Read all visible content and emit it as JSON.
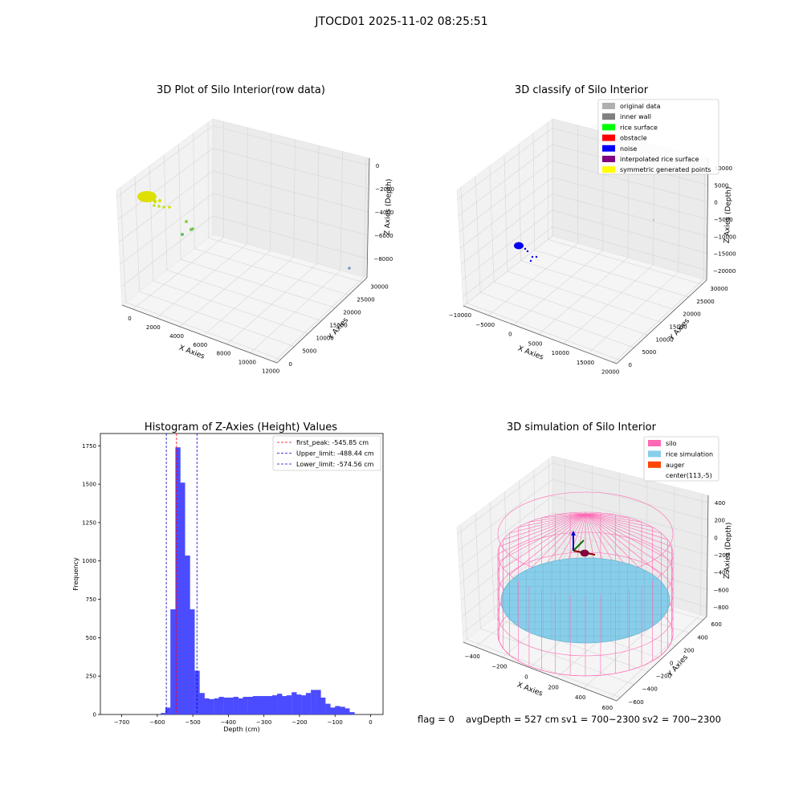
{
  "figure_title": "JTOCD01 2025-11-02 08:25:51",
  "footer": {
    "flag": "flag = 0",
    "avg_depth": "avgDepth = 527 cm",
    "sv1": "sv1 = 700~2300",
    "sv2": "sv2 = 700~2300"
  },
  "colors": {
    "original_data": "#b0b0b0",
    "inner_wall": "#808080",
    "rice_surface": "#00ff00",
    "obstacle": "#ff0000",
    "noise": "#0000ff",
    "interpolated_rice_surface": "#800080",
    "symmetric_generated_points": "#ffff00",
    "silo": "#ff69b4",
    "rice_simulation": "#87ceeb",
    "auger": "#ff4500",
    "hist_bar": "#4b4bff",
    "first_peak_line": "#ff0000",
    "limit_line": "#0000cc"
  },
  "chart_data": [
    {
      "type": "scatter",
      "projection": "3d",
      "title": "3D Plot of Silo Interior(row data)",
      "xlabel": "X Axies",
      "ylabel": "Y Axies",
      "zlabel": "Z Axies (Depth)",
      "xticks": [
        "0",
        "2000",
        "4000",
        "6000",
        "8000",
        "10000",
        "12000"
      ],
      "yticks": [
        "0",
        "5000",
        "10000",
        "15000",
        "20000",
        "25000",
        "30000"
      ],
      "zticks": [
        "0",
        "−2000",
        "−4000",
        "−6000",
        "−8000"
      ],
      "grid": true
    },
    {
      "type": "scatter",
      "projection": "3d",
      "title": "3D classify of Silo Interior",
      "xlabel": "X Axies",
      "ylabel": "Y Axies",
      "zlabel": "Z Axies (Depth)",
      "xticks": [
        "−10000",
        "−5000",
        "0",
        "5000",
        "10000",
        "15000",
        "20000"
      ],
      "yticks": [
        "0",
        "5000",
        "10000",
        "15000",
        "20000",
        "25000",
        "30000"
      ],
      "zticks": [
        "10000",
        "5000",
        "0",
        "−5000",
        "−10000",
        "−15000",
        "−20000"
      ],
      "legend": [
        "original data",
        "inner wall",
        "rice surface",
        "obstacle",
        "noise",
        "interpolated rice surface",
        "symmetric generated points"
      ],
      "legend_position": "top-right",
      "grid": true
    },
    {
      "type": "bar",
      "title": "Histogram of Z-Axies (Height) Values",
      "xlabel": "Depth (cm)",
      "ylabel": "Frequency",
      "xlim": [
        -760,
        35
      ],
      "ylim": [
        0,
        1830
      ],
      "xticks": [
        -700,
        -600,
        -500,
        -400,
        -300,
        -200,
        -100,
        0
      ],
      "xtick_labels": [
        "−700",
        "−600",
        "−500",
        "−400",
        "−300",
        "−200",
        "−100",
        "0"
      ],
      "yticks": [
        0,
        250,
        500,
        750,
        1000,
        1250,
        1500,
        1750
      ],
      "bin_width": 13.6,
      "bin_starts": [
        -590,
        -577,
        -563,
        -549,
        -536,
        -522,
        -509,
        -495,
        -481,
        -468,
        -454,
        -440,
        -427,
        -413,
        -400,
        -386,
        -372,
        -359,
        -345,
        -331,
        -318,
        -304,
        -291,
        -277,
        -263,
        -250,
        -236,
        -222,
        -209,
        -195,
        -182,
        -168,
        -154,
        -141,
        -127,
        -113,
        -100,
        -86,
        -73,
        -59,
        -45,
        -32,
        -18,
        -5
      ],
      "values": [
        10,
        45,
        685,
        1740,
        1510,
        1035,
        685,
        285,
        140,
        105,
        100,
        105,
        115,
        110,
        110,
        115,
        105,
        115,
        115,
        120,
        120,
        120,
        120,
        125,
        135,
        120,
        125,
        145,
        130,
        125,
        140,
        160,
        160,
        110,
        70,
        45,
        55,
        50,
        40,
        15,
        0,
        0,
        0,
        0
      ],
      "lines": [
        {
          "label": "first_peak: -545.85 cm",
          "x": -545.85,
          "style": "red-dashed"
        },
        {
          "label": "Upper_limit: -488.44 cm",
          "x": -488.44,
          "style": "blue-dashed"
        },
        {
          "label": "Lower_limit: -574.56 cm",
          "x": -574.56,
          "style": "blue-dashed"
        }
      ],
      "legend_position": "top-right"
    },
    {
      "type": "surface",
      "projection": "3d",
      "title": "3D simulation of Silo Interior",
      "xlabel": "X Axies",
      "ylabel": "Y Axies",
      "zlabel": "Z Axies (Depth)",
      "xticks": [
        "−400",
        "−200",
        "0",
        "200",
        "400",
        "600"
      ],
      "yticks": [
        "−600",
        "−400",
        "−200",
        "0",
        "200",
        "400",
        "600"
      ],
      "zticks": [
        "400",
        "200",
        "0",
        "−200",
        "−400",
        "−600",
        "−800"
      ],
      "legend": [
        "silo",
        "rice simulation",
        "auger",
        "center(113,-5)"
      ],
      "legend_position": "top-right",
      "grid": true
    }
  ]
}
